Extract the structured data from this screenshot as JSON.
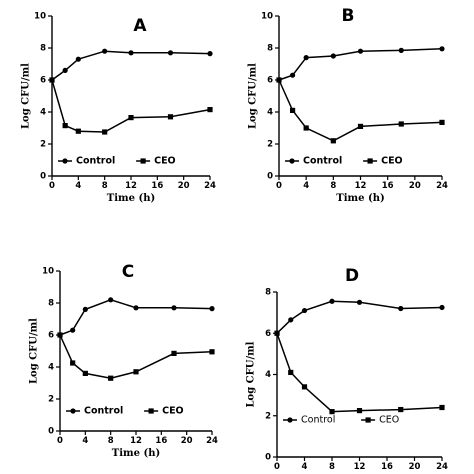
{
  "chart_data": [
    {
      "type": "line",
      "panel": "A",
      "xlabel": "Time (h)",
      "ylabel": "Log CFU/ml",
      "xlim": [
        0,
        24
      ],
      "ylim": [
        0,
        10
      ],
      "xticks": [
        0,
        4,
        8,
        12,
        16,
        20,
        24
      ],
      "xtick_labels": [
        "0",
        "4",
        "8",
        "12",
        "16",
        "20",
        "24"
      ],
      "yticks": [
        0,
        2,
        4,
        6,
        8,
        10
      ],
      "ytick_labels": [
        "0",
        "2",
        "4",
        "6",
        "8",
        "10"
      ],
      "legend_position": "bottom-left",
      "series": [
        {
          "name": "Control",
          "marker": "circle",
          "x": [
            0,
            2,
            4,
            8,
            12,
            18,
            24
          ],
          "y": [
            6.0,
            6.6,
            7.3,
            7.8,
            7.7,
            7.7,
            7.65
          ]
        },
        {
          "name": "CEO",
          "marker": "square",
          "x": [
            0,
            2,
            4,
            8,
            12,
            18,
            24
          ],
          "y": [
            6.0,
            3.15,
            2.8,
            2.75,
            3.65,
            3.7,
            4.15
          ]
        }
      ]
    },
    {
      "type": "line",
      "panel": "B",
      "xlabel": "Time (h)",
      "ylabel": "Log CFU/ml",
      "xlim": [
        0,
        24
      ],
      "ylim": [
        0,
        10
      ],
      "xticks": [
        0,
        4,
        8,
        12,
        16,
        20,
        24
      ],
      "xtick_labels": [
        "0",
        "4",
        "8",
        "12",
        "16",
        "20",
        "24"
      ],
      "yticks": [
        0,
        2,
        4,
        6,
        8,
        10
      ],
      "ytick_labels": [
        "0",
        "2",
        "4",
        "6",
        "8",
        "10"
      ],
      "legend_position": "bottom-left",
      "series": [
        {
          "name": "Control",
          "marker": "circle",
          "x": [
            0,
            2,
            4,
            8,
            12,
            18,
            24
          ],
          "y": [
            6.0,
            6.3,
            7.4,
            7.5,
            7.8,
            7.85,
            7.95
          ]
        },
        {
          "name": "CEO",
          "marker": "square",
          "x": [
            0,
            2,
            4,
            8,
            12,
            18,
            24
          ],
          "y": [
            6.0,
            4.1,
            3.0,
            2.2,
            3.1,
            3.25,
            3.35
          ]
        }
      ]
    },
    {
      "type": "line",
      "panel": "C",
      "xlabel": "Time (h)",
      "ylabel": "Log CFU/ml",
      "xlim": [
        0,
        24
      ],
      "ylim": [
        0,
        10
      ],
      "xticks": [
        0,
        4,
        8,
        12,
        16,
        20,
        24
      ],
      "xtick_labels": [
        "0",
        "4",
        "8",
        "12",
        "16",
        "20",
        "24"
      ],
      "yticks": [
        0,
        2,
        4,
        6,
        8,
        10
      ],
      "ytick_labels": [
        "0",
        "2",
        "4",
        "6",
        "8",
        "10"
      ],
      "legend_position": "bottom-left",
      "series": [
        {
          "name": "Control",
          "marker": "circle",
          "x": [
            0,
            2,
            4,
            8,
            12,
            18,
            24
          ],
          "y": [
            6.0,
            6.3,
            7.6,
            8.2,
            7.7,
            7.7,
            7.65
          ]
        },
        {
          "name": "CEO",
          "marker": "square",
          "x": [
            0,
            2,
            4,
            8,
            12,
            18,
            24
          ],
          "y": [
            6.0,
            4.25,
            3.6,
            3.3,
            3.7,
            4.85,
            4.95
          ]
        }
      ]
    },
    {
      "type": "line",
      "panel": "D",
      "xlabel": "Time (h)",
      "ylabel": "Log CFU/ml",
      "xlim": [
        0,
        24
      ],
      "ylim": [
        0,
        8
      ],
      "xticks": [
        0,
        4,
        8,
        12,
        16,
        20,
        24
      ],
      "xtick_labels": [
        "0",
        "4",
        "8",
        "12",
        "16",
        "20",
        "24"
      ],
      "yticks": [
        0,
        2,
        4,
        6,
        8
      ],
      "ytick_labels": [
        "0",
        "2",
        "4",
        "6",
        "8"
      ],
      "legend_position": "bottom-left",
      "series": [
        {
          "name": "Control",
          "marker": "circle",
          "x": [
            0,
            2,
            4,
            8,
            12,
            18,
            24
          ],
          "y": [
            6.0,
            6.65,
            7.1,
            7.55,
            7.5,
            7.2,
            7.25
          ]
        },
        {
          "name": "CEO",
          "marker": "square",
          "x": [
            0,
            2,
            4,
            8,
            12,
            18,
            24
          ],
          "y": [
            6.0,
            4.1,
            3.4,
            2.2,
            2.25,
            2.3,
            2.4
          ]
        }
      ]
    }
  ]
}
